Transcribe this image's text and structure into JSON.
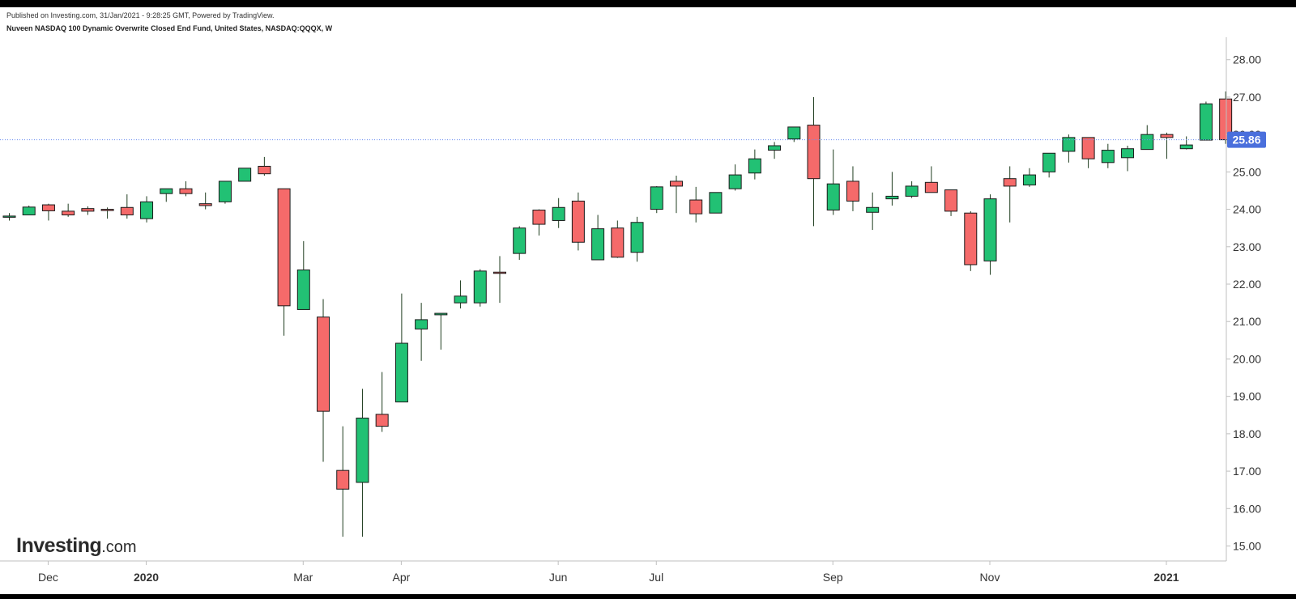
{
  "header": {
    "published": "Published on Investing.com, 31/Jan/2021 - 9:28:25 GMT, Powered by TradingView.",
    "instrument": "Nuveen NASDAQ 100 Dynamic Overwrite Closed End Fund, United States, NASDAQ:QQQX, W"
  },
  "logo": {
    "brand": "Investing",
    "suffix": ".com"
  },
  "chart_data": {
    "type": "candlestick",
    "title": "Nuveen NASDAQ 100 Dynamic Overwrite Closed End Fund, United States, NASDAQ:QQQX, W",
    "interval": "W",
    "ylim": [
      14.6,
      28.6
    ],
    "y_ticks": [
      "28.00",
      "27.00",
      "26.00",
      "25.00",
      "24.00",
      "23.00",
      "22.00",
      "21.00",
      "20.00",
      "19.00",
      "18.00",
      "17.00",
      "16.00",
      "15.00"
    ],
    "x_labels": [
      {
        "label": "Dec",
        "index": 2,
        "bold": false
      },
      {
        "label": "2020",
        "index": 7,
        "bold": true
      },
      {
        "label": "Mar",
        "index": 15,
        "bold": false
      },
      {
        "label": "Apr",
        "index": 20,
        "bold": false
      },
      {
        "label": "Jun",
        "index": 28,
        "bold": false
      },
      {
        "label": "Jul",
        "index": 33,
        "bold": false
      },
      {
        "label": "Sep",
        "index": 42,
        "bold": false
      },
      {
        "label": "Nov",
        "index": 50,
        "bold": false
      },
      {
        "label": "2021",
        "index": 59,
        "bold": true
      }
    ],
    "last_price": "25.86",
    "last_value": 25.86,
    "candles": [
      {
        "o": 23.8,
        "h": 23.9,
        "l": 23.7,
        "c": 23.82
      },
      {
        "o": 23.85,
        "h": 24.1,
        "l": 23.85,
        "c": 24.06
      },
      {
        "o": 24.12,
        "h": 24.15,
        "l": 23.7,
        "c": 23.96
      },
      {
        "o": 23.95,
        "h": 24.15,
        "l": 23.8,
        "c": 23.85
      },
      {
        "o": 24.02,
        "h": 24.08,
        "l": 23.85,
        "c": 23.95
      },
      {
        "o": 24.0,
        "h": 24.05,
        "l": 23.75,
        "c": 23.97
      },
      {
        "o": 24.05,
        "h": 24.4,
        "l": 23.75,
        "c": 23.85
      },
      {
        "o": 23.75,
        "h": 24.35,
        "l": 23.65,
        "c": 24.2
      },
      {
        "o": 24.42,
        "h": 24.55,
        "l": 24.2,
        "c": 24.55
      },
      {
        "o": 24.55,
        "h": 24.75,
        "l": 24.35,
        "c": 24.42
      },
      {
        "o": 24.15,
        "h": 24.45,
        "l": 24.0,
        "c": 24.1
      },
      {
        "o": 24.2,
        "h": 24.75,
        "l": 24.15,
        "c": 24.75
      },
      {
        "o": 24.75,
        "h": 25.1,
        "l": 24.75,
        "c": 25.1
      },
      {
        "o": 25.15,
        "h": 25.4,
        "l": 24.9,
        "c": 24.95
      },
      {
        "o": 24.55,
        "h": 24.55,
        "l": 20.62,
        "c": 21.42
      },
      {
        "o": 21.32,
        "h": 23.15,
        "l": 21.32,
        "c": 22.38
      },
      {
        "o": 21.12,
        "h": 21.6,
        "l": 17.25,
        "c": 18.6
      },
      {
        "o": 17.02,
        "h": 18.2,
        "l": 15.25,
        "c": 16.52
      },
      {
        "o": 16.7,
        "h": 19.2,
        "l": 15.25,
        "c": 18.42
      },
      {
        "o": 18.52,
        "h": 19.65,
        "l": 18.05,
        "c": 18.2
      },
      {
        "o": 18.85,
        "h": 21.75,
        "l": 18.85,
        "c": 20.42
      },
      {
        "o": 20.8,
        "h": 21.5,
        "l": 19.95,
        "c": 21.05
      },
      {
        "o": 21.18,
        "h": 21.22,
        "l": 20.25,
        "c": 21.22
      },
      {
        "o": 21.5,
        "h": 22.1,
        "l": 21.35,
        "c": 21.68
      },
      {
        "o": 21.5,
        "h": 22.4,
        "l": 21.4,
        "c": 22.35
      },
      {
        "o": 22.32,
        "h": 22.75,
        "l": 21.5,
        "c": 22.3
      },
      {
        "o": 22.82,
        "h": 23.55,
        "l": 22.65,
        "c": 23.5
      },
      {
        "o": 23.98,
        "h": 24.0,
        "l": 23.3,
        "c": 23.6
      },
      {
        "o": 23.7,
        "h": 24.3,
        "l": 23.5,
        "c": 24.05
      },
      {
        "o": 24.22,
        "h": 24.45,
        "l": 22.9,
        "c": 23.12
      },
      {
        "o": 22.65,
        "h": 23.85,
        "l": 22.65,
        "c": 23.48
      },
      {
        "o": 23.5,
        "h": 23.7,
        "l": 22.7,
        "c": 22.72
      },
      {
        "o": 22.85,
        "h": 23.8,
        "l": 22.6,
        "c": 23.65
      },
      {
        "o": 24.0,
        "h": 24.62,
        "l": 23.9,
        "c": 24.6
      },
      {
        "o": 24.75,
        "h": 24.9,
        "l": 23.9,
        "c": 24.62
      },
      {
        "o": 24.25,
        "h": 24.6,
        "l": 23.65,
        "c": 23.88
      },
      {
        "o": 23.9,
        "h": 24.45,
        "l": 23.9,
        "c": 24.45
      },
      {
        "o": 24.55,
        "h": 25.2,
        "l": 24.5,
        "c": 24.92
      },
      {
        "o": 24.97,
        "h": 25.6,
        "l": 24.8,
        "c": 25.35
      },
      {
        "o": 25.58,
        "h": 25.8,
        "l": 25.35,
        "c": 25.7
      },
      {
        "o": 25.88,
        "h": 26.2,
        "l": 25.8,
        "c": 26.2
      },
      {
        "o": 26.25,
        "h": 27.0,
        "l": 23.55,
        "c": 24.82
      },
      {
        "o": 23.98,
        "h": 25.6,
        "l": 23.85,
        "c": 24.68
      },
      {
        "o": 24.75,
        "h": 25.15,
        "l": 23.95,
        "c": 24.22
      },
      {
        "o": 23.92,
        "h": 24.45,
        "l": 23.45,
        "c": 24.05
      },
      {
        "o": 24.28,
        "h": 25.0,
        "l": 24.1,
        "c": 24.35
      },
      {
        "o": 24.35,
        "h": 24.75,
        "l": 24.3,
        "c": 24.62
      },
      {
        "o": 24.72,
        "h": 25.15,
        "l": 24.45,
        "c": 24.45
      },
      {
        "o": 24.52,
        "h": 24.52,
        "l": 23.82,
        "c": 23.95
      },
      {
        "o": 23.9,
        "h": 23.95,
        "l": 22.35,
        "c": 22.52
      },
      {
        "o": 22.62,
        "h": 24.4,
        "l": 22.25,
        "c": 24.28
      },
      {
        "o": 24.82,
        "h": 25.15,
        "l": 23.65,
        "c": 24.62
      },
      {
        "o": 24.65,
        "h": 25.1,
        "l": 24.6,
        "c": 24.92
      },
      {
        "o": 25.0,
        "h": 25.5,
        "l": 24.85,
        "c": 25.5
      },
      {
        "o": 25.55,
        "h": 26.0,
        "l": 25.25,
        "c": 25.92
      },
      {
        "o": 25.92,
        "h": 25.92,
        "l": 25.1,
        "c": 25.35
      },
      {
        "o": 25.25,
        "h": 25.75,
        "l": 25.1,
        "c": 25.58
      },
      {
        "o": 25.38,
        "h": 25.7,
        "l": 25.02,
        "c": 25.62
      },
      {
        "o": 25.6,
        "h": 26.25,
        "l": 25.6,
        "c": 26.0
      },
      {
        "o": 26.0,
        "h": 26.05,
        "l": 25.35,
        "c": 25.92
      },
      {
        "o": 25.62,
        "h": 25.95,
        "l": 25.6,
        "c": 25.72
      },
      {
        "o": 25.85,
        "h": 26.88,
        "l": 25.85,
        "c": 26.82
      },
      {
        "o": 26.95,
        "h": 27.15,
        "l": 25.75,
        "c": 25.86
      }
    ]
  }
}
